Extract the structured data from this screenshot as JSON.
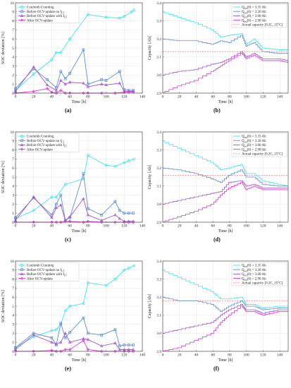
{
  "captions": [
    "(a)",
    "(b)",
    "(c)",
    "(d)",
    "(e)",
    "(f)"
  ],
  "colors": {
    "cyan": "#3fe4f0",
    "blue": "#5c8bd6",
    "purple": "#a152d6",
    "magenta": "#e233d6",
    "red_dashed": "#f06a6a",
    "axis": "#333333",
    "grid": "#e6e6e6"
  },
  "chart_data": [
    {
      "type": "line",
      "xlabel": "Time [h]",
      "ylabel": "SOC deviation [%]",
      "xlim": [
        0,
        140
      ],
      "ylim": [
        0,
        10
      ],
      "xticks": [
        0,
        20,
        40,
        60,
        80,
        100,
        120,
        140
      ],
      "yticks": [
        0,
        1,
        2,
        3,
        4,
        5,
        6,
        7,
        8,
        9,
        10
      ],
      "grid": true,
      "legend": "top-left",
      "series": [
        {
          "name": "Coulomb Counting",
          "color": "#3fe4f0",
          "x": [
            0,
            20,
            40,
            45,
            50,
            60,
            80,
            100,
            115,
            120,
            128,
            131
          ],
          "y": [
            0.3,
            2.1,
            3.7,
            4.5,
            4.5,
            6.0,
            8.7,
            8.4,
            8.3,
            8.5,
            9.0,
            9.2
          ]
        },
        {
          "name": "Before OCV-update no f_LT",
          "color": "#5c8bd6",
          "x": [
            0,
            20,
            35,
            45,
            50,
            55,
            60,
            75,
            80,
            95,
            100,
            115,
            120,
            125,
            130
          ],
          "y": [
            0.5,
            2.7,
            1.5,
            0.6,
            2.4,
            1.6,
            2.2,
            4.8,
            1.0,
            1.5,
            1.4,
            2.4,
            0.4,
            0.3,
            0.3
          ]
        },
        {
          "name": "Before OCV-update with f_LT",
          "color": "#a152d6",
          "x": [
            0,
            20,
            35,
            45,
            50,
            55,
            60,
            75,
            80,
            95,
            100,
            115,
            120,
            125,
            130
          ],
          "y": [
            0.2,
            2.9,
            0.9,
            0.3,
            1.4,
            1.0,
            1.2,
            1.1,
            0.7,
            1.0,
            0.9,
            1.1,
            0.2,
            0.2,
            0.2
          ]
        },
        {
          "name": "After OCV-update",
          "color": "#e233d6",
          "x": [
            0,
            20,
            35,
            40,
            45,
            50,
            55,
            60,
            75,
            80,
            95,
            110,
            120,
            125,
            130
          ],
          "y": [
            0.0,
            0.2,
            0.5,
            0.1,
            0.0,
            0.3,
            0.0,
            0.0,
            0.0,
            0.0,
            0.0,
            0.0,
            0.1,
            0.1,
            0.1
          ]
        }
      ]
    },
    {
      "type": "line",
      "xlabel": "Time [h]",
      "ylabel": "Capacity [Ah]",
      "xlim": [
        0,
        150
      ],
      "ylim": [
        2.9,
        3.4
      ],
      "xticks": [
        0,
        20,
        40,
        60,
        80,
        100,
        120,
        140
      ],
      "yticks": [
        2.9,
        3.0,
        3.1,
        3.2,
        3.3,
        3.4
      ],
      "grid": true,
      "legend": "top-right",
      "reference_line": {
        "name": "Actual capacity [0.2C, 25°C]",
        "y": 3.13
      },
      "series": [
        {
          "name": "Qest(0) = 3.35 Ah",
          "color": "#3fe4f0",
          "x": [
            0,
            20,
            40,
            60,
            70,
            80,
            95,
            100,
            110,
            120,
            140,
            150
          ],
          "y": [
            3.35,
            3.32,
            3.29,
            3.25,
            3.21,
            3.22,
            3.23,
            3.17,
            3.2,
            3.15,
            3.14,
            3.14
          ]
        },
        {
          "name": "Qest(0) = 3.20 Ah",
          "color": "#5c8bd6",
          "x": [
            0,
            20,
            40,
            60,
            70,
            80,
            95,
            100,
            110,
            120,
            140,
            150
          ],
          "y": [
            3.2,
            3.19,
            3.19,
            3.17,
            3.19,
            3.18,
            3.22,
            3.16,
            3.18,
            3.13,
            3.12,
            3.12
          ]
        },
        {
          "name": "Qest(0) = 3.00 Ah",
          "color": "#a152d6",
          "x": [
            0,
            20,
            40,
            60,
            70,
            80,
            95,
            100,
            110,
            120,
            140,
            150
          ],
          "y": [
            3.0,
            3.02,
            3.03,
            3.06,
            3.07,
            3.09,
            3.13,
            3.1,
            3.12,
            3.09,
            3.09,
            3.08
          ]
        },
        {
          "name": "Qest(0) = 2.90 Ah",
          "color": "#e233d6",
          "x": [
            0,
            20,
            40,
            60,
            70,
            80,
            95,
            100,
            110,
            120,
            140,
            150
          ],
          "y": [
            2.9,
            2.94,
            2.97,
            3.02,
            3.05,
            3.08,
            3.12,
            3.09,
            3.11,
            3.08,
            3.08,
            3.07
          ]
        }
      ]
    },
    {
      "type": "line",
      "xlabel": "Time [h]",
      "ylabel": "SOC deviation [%]",
      "xlim": [
        0,
        140
      ],
      "ylim": [
        0,
        10
      ],
      "xticks": [
        0,
        20,
        40,
        60,
        80,
        100,
        120,
        140
      ],
      "yticks": [
        0,
        1,
        2,
        3,
        4,
        5,
        6,
        7,
        8,
        9,
        10
      ],
      "grid": true,
      "legend": "top-left",
      "series": [
        {
          "name": "Coulomb Counting",
          "color": "#3fe4f0",
          "x": [
            0,
            20,
            40,
            45,
            55,
            75,
            80,
            100,
            110,
            120,
            125,
            131
          ],
          "y": [
            0.4,
            1.3,
            2.8,
            2.8,
            4.2,
            4.8,
            7.4,
            6.3,
            6.2,
            6.6,
            6.8,
            7.0
          ]
        },
        {
          "name": "Before OCV-update no f_LT",
          "color": "#5c8bd6",
          "x": [
            0,
            20,
            40,
            45,
            50,
            55,
            60,
            75,
            80,
            95,
            110,
            115,
            120,
            125,
            130
          ],
          "y": [
            0.5,
            2.7,
            0.8,
            2.0,
            3.0,
            0.2,
            0.5,
            5.4,
            1.5,
            0.8,
            2.3,
            1.3,
            1.0,
            1.0,
            1.0
          ]
        },
        {
          "name": "Before OCV-update with f_LT",
          "color": "#a152d6",
          "x": [
            0,
            20,
            40,
            45,
            50,
            55,
            60,
            75,
            80,
            95,
            110,
            115,
            120,
            125,
            130
          ],
          "y": [
            0.2,
            2.8,
            0.5,
            1.6,
            1.9,
            0.2,
            0.6,
            2.6,
            0.8,
            0.2,
            0.8,
            0.4,
            0.1,
            0.1,
            0.1
          ]
        },
        {
          "name": "After OCV-update",
          "color": "#e233d6",
          "x": [
            0,
            20,
            40,
            45,
            50,
            55,
            60,
            75,
            80,
            95,
            110,
            120,
            125,
            130
          ],
          "y": [
            0.0,
            0.0,
            0.0,
            0.0,
            0.0,
            0.1,
            0.1,
            0.0,
            0.1,
            0.0,
            0.0,
            0.0,
            0.0,
            0.0
          ]
        }
      ]
    },
    {
      "type": "line",
      "xlabel": "Time [h]",
      "ylabel": "Capacity [Ah]",
      "xlim": [
        0,
        150
      ],
      "ylim": [
        2.9,
        3.4
      ],
      "xticks": [
        0,
        20,
        40,
        60,
        80,
        100,
        120,
        140
      ],
      "yticks": [
        2.9,
        3.0,
        3.1,
        3.2,
        3.3,
        3.4
      ],
      "grid": true,
      "legend": "top-right",
      "reference_line": {
        "name": "Actual capacity [0.2C, 25°C]",
        "y": 3.16
      },
      "series": [
        {
          "name": "Qest(0) = 3.35 Ah",
          "color": "#3fe4f0",
          "x": [
            0,
            20,
            40,
            60,
            70,
            80,
            95,
            100,
            110,
            120,
            140,
            150
          ],
          "y": [
            3.35,
            3.31,
            3.27,
            3.23,
            3.19,
            3.2,
            3.22,
            3.17,
            3.17,
            3.13,
            3.11,
            3.1
          ]
        },
        {
          "name": "Qest(0) = 3.20 Ah",
          "color": "#5c8bd6",
          "x": [
            0,
            20,
            40,
            60,
            70,
            80,
            95,
            100,
            110,
            120,
            140,
            150
          ],
          "y": [
            3.2,
            3.19,
            3.17,
            3.14,
            3.12,
            3.16,
            3.19,
            3.15,
            3.15,
            3.11,
            3.1,
            3.1
          ]
        },
        {
          "name": "Qest(0) = 3.00 Ah",
          "color": "#a152d6",
          "x": [
            0,
            20,
            40,
            60,
            70,
            80,
            95,
            100,
            110,
            120,
            140,
            150
          ],
          "y": [
            3.0,
            3.02,
            3.04,
            3.06,
            3.07,
            3.12,
            3.13,
            3.1,
            3.11,
            3.09,
            3.09,
            3.09
          ]
        },
        {
          "name": "Qest(0) = 2.90 Ah",
          "color": "#e233d6",
          "x": [
            0,
            20,
            40,
            60,
            70,
            80,
            95,
            100,
            110,
            120,
            140,
            150
          ],
          "y": [
            2.9,
            2.93,
            2.96,
            3.0,
            3.05,
            3.09,
            3.12,
            3.08,
            3.1,
            3.08,
            3.08,
            3.08
          ]
        }
      ]
    },
    {
      "type": "line",
      "xlabel": "Time [h]",
      "ylabel": "SOC deviation [%]",
      "xlim": [
        0,
        140
      ],
      "ylim": [
        0,
        10
      ],
      "xticks": [
        0,
        20,
        40,
        60,
        80,
        100,
        120,
        140
      ],
      "yticks": [
        0,
        1,
        2,
        3,
        4,
        5,
        6,
        7,
        8,
        9,
        10
      ],
      "grid": true,
      "legend": "top-left",
      "series": [
        {
          "name": "Coulomb Counting",
          "color": "#3fe4f0",
          "x": [
            0,
            20,
            40,
            45,
            50,
            55,
            60,
            75,
            80,
            100,
            110,
            120,
            125,
            131
          ],
          "y": [
            0.4,
            1.6,
            2.3,
            2.4,
            3.0,
            4.5,
            5.0,
            5.3,
            7.6,
            7.3,
            8.0,
            9.0,
            9.2,
            9.5
          ]
        },
        {
          "name": "Before OCV-update no f_LT",
          "color": "#5c8bd6",
          "x": [
            0,
            20,
            40,
            45,
            50,
            55,
            60,
            75,
            80,
            95,
            110,
            115,
            120,
            125,
            130
          ],
          "y": [
            0.4,
            2.0,
            1.5,
            0.7,
            3.1,
            1.5,
            2.1,
            3.7,
            2.0,
            1.8,
            2.4,
            0.6,
            0.7,
            0.7,
            0.7
          ]
        },
        {
          "name": "Before OCV-update with f_LT",
          "color": "#a152d6",
          "x": [
            0,
            20,
            40,
            45,
            50,
            55,
            60,
            75,
            80,
            95,
            110,
            115,
            120,
            125,
            130
          ],
          "y": [
            0.2,
            1.8,
            1.0,
            0.8,
            1.0,
            2.0,
            1.0,
            1.4,
            1.3,
            0.6,
            0.9,
            0.2,
            0.2,
            0.2,
            0.2
          ]
        },
        {
          "name": "After OCV-update",
          "color": "#e233d6",
          "x": [
            0,
            20,
            40,
            45,
            50,
            55,
            60,
            75,
            80,
            95,
            110,
            120,
            125,
            130
          ],
          "y": [
            0.0,
            0.0,
            0.1,
            0.0,
            0.0,
            0.2,
            0.2,
            1.2,
            0.2,
            0.0,
            0.0,
            0.0,
            0.0,
            0.0
          ]
        }
      ]
    },
    {
      "type": "line",
      "xlabel": "Time [h]",
      "ylabel": "Capacity [Ah]",
      "xlim": [
        0,
        150
      ],
      "ylim": [
        2.9,
        3.4
      ],
      "xticks": [
        0,
        20,
        40,
        60,
        80,
        100,
        120,
        140
      ],
      "yticks": [
        2.9,
        3.0,
        3.1,
        3.2,
        3.3,
        3.4
      ],
      "grid": true,
      "legend": "top-right",
      "reference_line": {
        "name": "Actual capacity [0.2C, 25°C]",
        "y": 3.18
      },
      "series": [
        {
          "name": "Qest(0) = 3.35 Ah",
          "color": "#3fe4f0",
          "x": [
            0,
            20,
            40,
            60,
            70,
            80,
            95,
            100,
            110,
            120,
            140,
            150
          ],
          "y": [
            3.35,
            3.31,
            3.27,
            3.23,
            3.19,
            3.19,
            3.2,
            3.16,
            3.16,
            3.14,
            3.15,
            3.15
          ]
        },
        {
          "name": "Qest(0) = 3.20 Ah",
          "color": "#5c8bd6",
          "x": [
            0,
            20,
            40,
            60,
            70,
            80,
            95,
            100,
            110,
            120,
            140,
            150
          ],
          "y": [
            3.2,
            3.18,
            3.18,
            3.16,
            3.12,
            3.15,
            3.18,
            3.15,
            3.15,
            3.13,
            3.14,
            3.14
          ]
        },
        {
          "name": "Qest(0) = 3.00 Ah",
          "color": "#a152d6",
          "x": [
            0,
            20,
            40,
            60,
            70,
            80,
            95,
            100,
            110,
            120,
            140,
            150
          ],
          "y": [
            3.0,
            3.02,
            3.04,
            3.06,
            3.1,
            3.13,
            3.16,
            3.13,
            3.13,
            3.11,
            3.13,
            3.13
          ]
        },
        {
          "name": "Qest(0) = 2.90 Ah",
          "color": "#e233d6",
          "x": [
            0,
            20,
            40,
            60,
            70,
            80,
            95,
            100,
            110,
            120,
            140,
            150
          ],
          "y": [
            2.9,
            2.92,
            2.96,
            3.0,
            3.06,
            3.1,
            3.15,
            3.12,
            3.12,
            3.1,
            3.12,
            3.12
          ]
        }
      ]
    }
  ]
}
